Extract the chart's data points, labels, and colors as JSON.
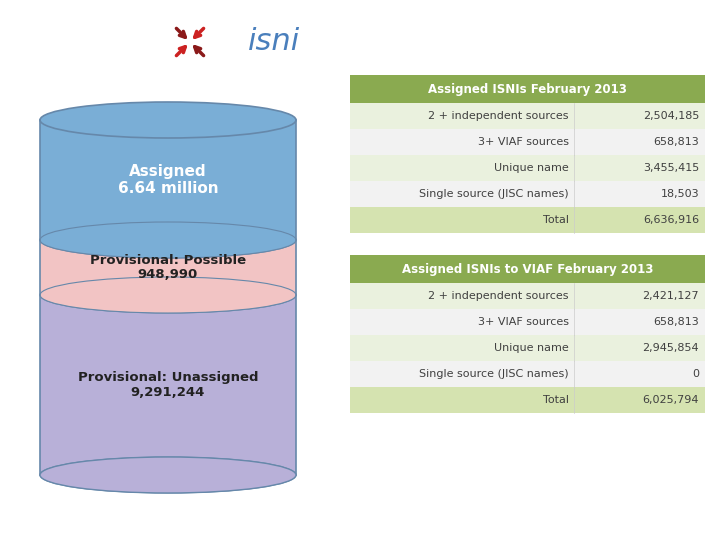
{
  "title1": "Assigned ISNIs February 2013",
  "title2": "Assigned ISNIs to VIAF February 2013",
  "table1_rows": [
    [
      "2 + independent sources",
      "2,504,185"
    ],
    [
      "3+ VIAF sources",
      "658,813"
    ],
    [
      "Unique name",
      "3,455,415"
    ],
    [
      "Single source (JISC names)",
      "18,503"
    ],
    [
      "Total",
      "6,636,916"
    ]
  ],
  "table2_rows": [
    [
      "2 + independent sources",
      "2,421,127"
    ],
    [
      "3+ VIAF sources",
      "658,813"
    ],
    [
      "Unique name",
      "2,945,854"
    ],
    [
      "Single source (JISC names)",
      "0"
    ],
    [
      "Total",
      "6,025,794"
    ]
  ],
  "cylinder_labels": [
    "Assigned\n6.64 million",
    "Provisional: Possible\n948,990",
    "Provisional: Unassigned\n9,291,244"
  ],
  "cylinder_colors": [
    "#7aaed6",
    "#f2c4c4",
    "#b8b0d8"
  ],
  "cylinder_edge_color": "#6688aa",
  "header_color": "#8aaa50",
  "header_text_color": "#ffffff",
  "row_colors_alt": [
    "#eaf1de",
    "#f2f2f2"
  ],
  "bg_color": "#ffffff",
  "table_text_color": "#404040",
  "total_row_color": "#d5e3b0",
  "logo_text_color": "#4a7fbc",
  "logo_fontsize": 22
}
